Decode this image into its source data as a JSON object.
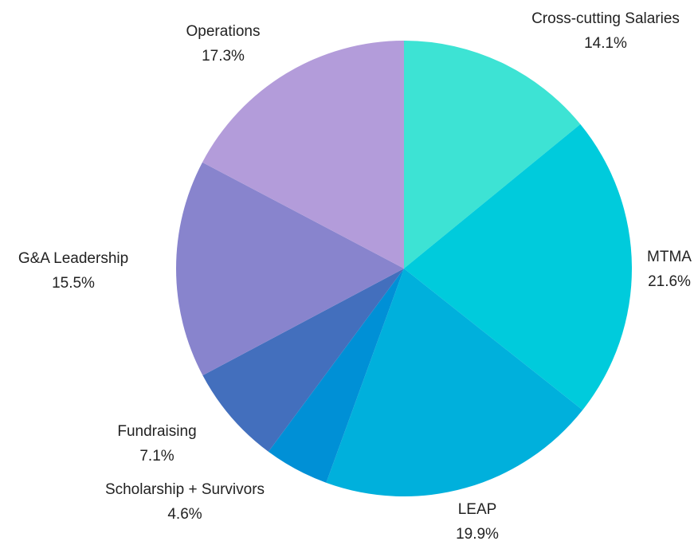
{
  "chart_data": {
    "type": "pie",
    "title": "",
    "start_angle_deg": 0,
    "direction": "clockwise",
    "slices": [
      {
        "label": "Cross-cutting Salaries",
        "value": 14.1,
        "display": "14.1%",
        "color": "#3de3d4"
      },
      {
        "label": "MTMA",
        "value": 21.6,
        "display": "21.6%",
        "color": "#00cbdc"
      },
      {
        "label": "LEAP",
        "value": 19.9,
        "display": "19.9%",
        "color": "#00b0dc"
      },
      {
        "label": "Scholarship + Survivors",
        "value": 4.6,
        "display": "4.6%",
        "color": "#0090d6"
      },
      {
        "label": "Fundraising",
        "value": 7.1,
        "display": "7.1%",
        "color": "#436fbd"
      },
      {
        "label": "G&A Leadership",
        "value": 15.5,
        "display": "15.5%",
        "color": "#8884cd"
      },
      {
        "label": "Operations",
        "value": 17.3,
        "display": "17.3%",
        "color": "#b39cda"
      }
    ]
  }
}
